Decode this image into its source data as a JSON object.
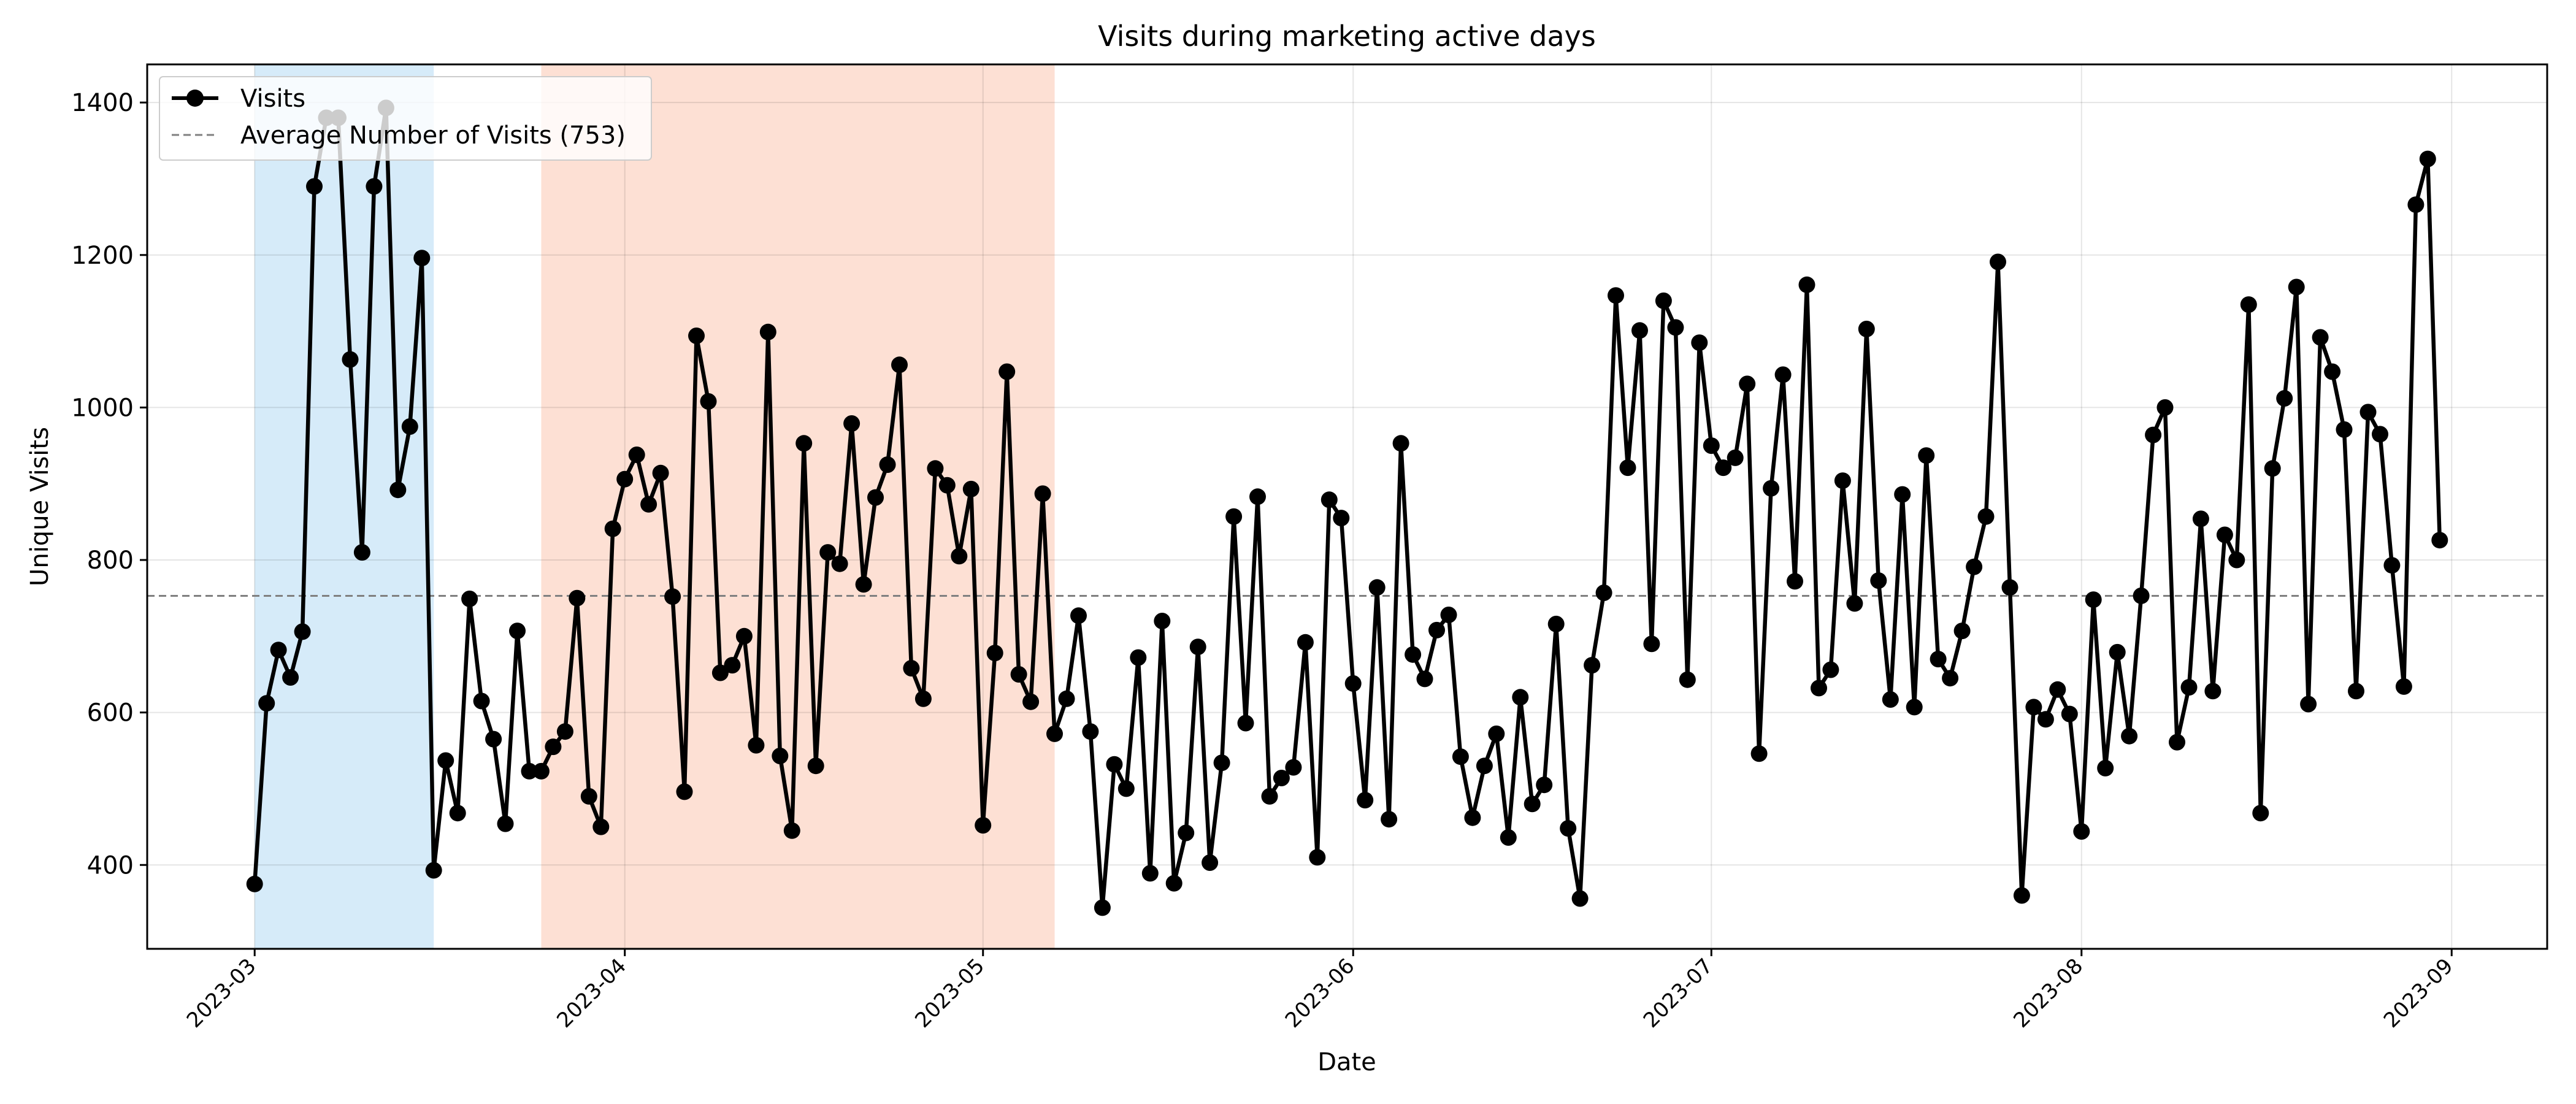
{
  "chart_data": {
    "type": "line",
    "title": "Visits during marketing active days",
    "xlabel": "Date",
    "ylabel": "Unique Visits",
    "xlim": [
      "2023-02-20",
      "2023-09-09"
    ],
    "ylim": [
      290,
      1450
    ],
    "grid": true,
    "legend_placement": "top-left",
    "x_ticks": [
      "2023-03",
      "2023-04",
      "2023-05",
      "2023-06",
      "2023-07",
      "2023-08",
      "2023-09"
    ],
    "y_ticks": [
      400,
      600,
      800,
      1000,
      1200,
      1400
    ],
    "start_date": "2023-03-01",
    "series": [
      {
        "name": "Visits",
        "color": "#000000",
        "marker": "circle",
        "values": [
          375,
          612,
          682,
          646,
          706,
          1290,
          1380,
          1380,
          1063,
          810,
          1290,
          1393,
          892,
          975,
          1196,
          393,
          537,
          468,
          749,
          615,
          565,
          454,
          707,
          523,
          523,
          555,
          575,
          750,
          490,
          450,
          841,
          906,
          938,
          873,
          914,
          752,
          496,
          1094,
          1008,
          652,
          662,
          700,
          557,
          1099,
          543,
          445,
          953,
          530,
          810,
          795,
          979,
          768,
          882,
          925,
          1056,
          658,
          618,
          920,
          898,
          805,
          893,
          452,
          678,
          1047,
          650,
          614,
          887,
          572,
          618,
          727,
          575,
          344,
          532,
          500,
          672,
          389,
          720,
          376,
          442,
          686,
          403,
          534,
          857,
          586,
          883,
          490,
          514,
          528,
          692,
          410,
          879,
          855,
          638,
          485,
          764,
          460,
          953,
          676,
          644,
          708,
          728,
          542,
          462,
          530,
          572,
          436,
          620,
          480,
          505,
          716,
          448,
          356,
          662,
          757,
          1147,
          921,
          1101,
          690,
          1140,
          1105,
          643,
          1085,
          950,
          921,
          934,
          1031,
          546,
          894,
          1043,
          772,
          1161,
          632,
          656,
          904,
          743,
          1103,
          773,
          617,
          886,
          607,
          937,
          670,
          645,
          707,
          791,
          857,
          1191,
          764,
          360,
          607,
          591,
          630,
          598,
          444,
          748,
          527,
          679,
          569,
          753,
          964,
          1000,
          561,
          633,
          854,
          628,
          833,
          800,
          1135,
          468,
          920,
          1012,
          1158,
          611,
          1092,
          1047,
          971,
          628,
          994,
          965,
          793,
          634,
          1266,
          1326,
          826
        ]
      }
    ],
    "reference_line": {
      "label": "Average Number of Visits (753)",
      "value": 753,
      "color": "#808080",
      "style": "dashed"
    },
    "shaded_periods": [
      {
        "start": "2023-03-01",
        "end": "2023-03-16",
        "color": "#d6ebf9"
      },
      {
        "start": "2023-03-25",
        "end": "2023-05-07",
        "color": "#fde0d4"
      }
    ]
  }
}
